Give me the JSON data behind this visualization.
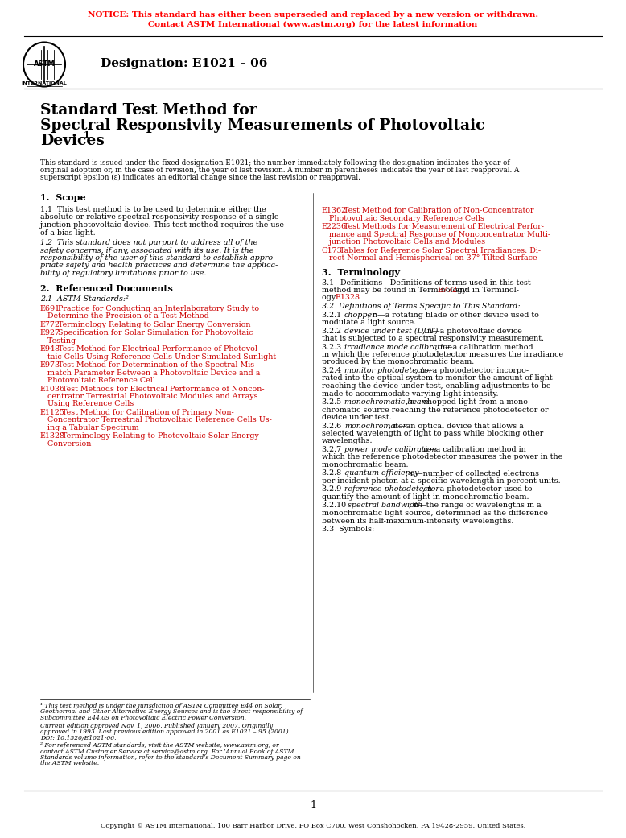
{
  "notice_line1": "NOTICE: This standard has either been superseded and replaced by a new version or withdrawn.",
  "notice_line2": "Contact ASTM International (www.astm.org) for the latest information",
  "notice_color": "#FF0000",
  "designation": "Designation: E1021 – 06",
  "title_line1": "Standard Test Method for",
  "title_line2": "Spectral Responsivity Measurements of Photovoltaic",
  "title_line3": "Devices",
  "title_superscript": "1",
  "ref_color": "#CC0000",
  "page_number": "1",
  "copyright": "Copyright © ASTM International, 100 Barr Harbor Drive, PO Box C700, West Conshohocken, PA 19428-2959, United States.",
  "bg_color": "#FFFFFF",
  "text_color": "#000000"
}
